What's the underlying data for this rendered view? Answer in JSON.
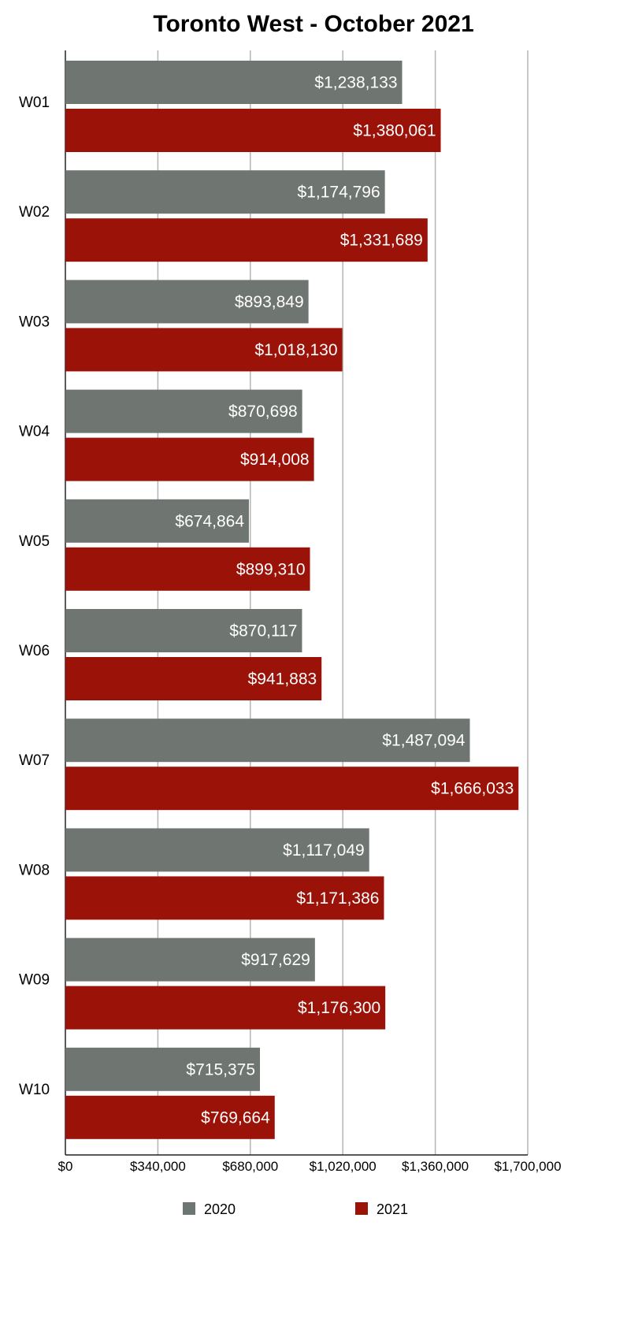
{
  "chart_data": {
    "type": "bar",
    "orientation": "horizontal",
    "title": "Toronto West - October 2021",
    "categories": [
      "W01",
      "W02",
      "W03",
      "W04",
      "W05",
      "W06",
      "W07",
      "W08",
      "W09",
      "W10"
    ],
    "series": [
      {
        "name": "2020",
        "color": "#6f7571",
        "values": [
          1238133,
          1174796,
          893849,
          870698,
          674864,
          870117,
          1487094,
          1117049,
          917629,
          715375
        ],
        "labels": [
          "$1,238,133",
          "$1,174,796",
          "$893,849",
          "$870,698",
          "$674,864",
          "$870,117",
          "$1,487,094",
          "$1,117,049",
          "$917,629",
          "$715,375"
        ]
      },
      {
        "name": "2021",
        "color": "#9b1208",
        "values": [
          1380061,
          1331689,
          1018130,
          914008,
          899310,
          941883,
          1666033,
          1171386,
          1176300,
          769664
        ],
        "labels": [
          "$1,380,061",
          "$1,331,689",
          "$1,018,130",
          "$914,008",
          "$899,310",
          "$941,883",
          "$1,666,033",
          "$1,171,386",
          "$1,176,300",
          "$769,664"
        ]
      }
    ],
    "xlim": [
      0,
      1700000
    ],
    "xticks": [
      0,
      340000,
      680000,
      1020000,
      1360000,
      1700000
    ],
    "xtick_labels": [
      "$0",
      "$340,000",
      "$680,000",
      "$1,020,000",
      "$1,360,000",
      "$1,700,000"
    ],
    "xlabel": "",
    "ylabel": "",
    "grid": true,
    "legend_position": "bottom"
  }
}
